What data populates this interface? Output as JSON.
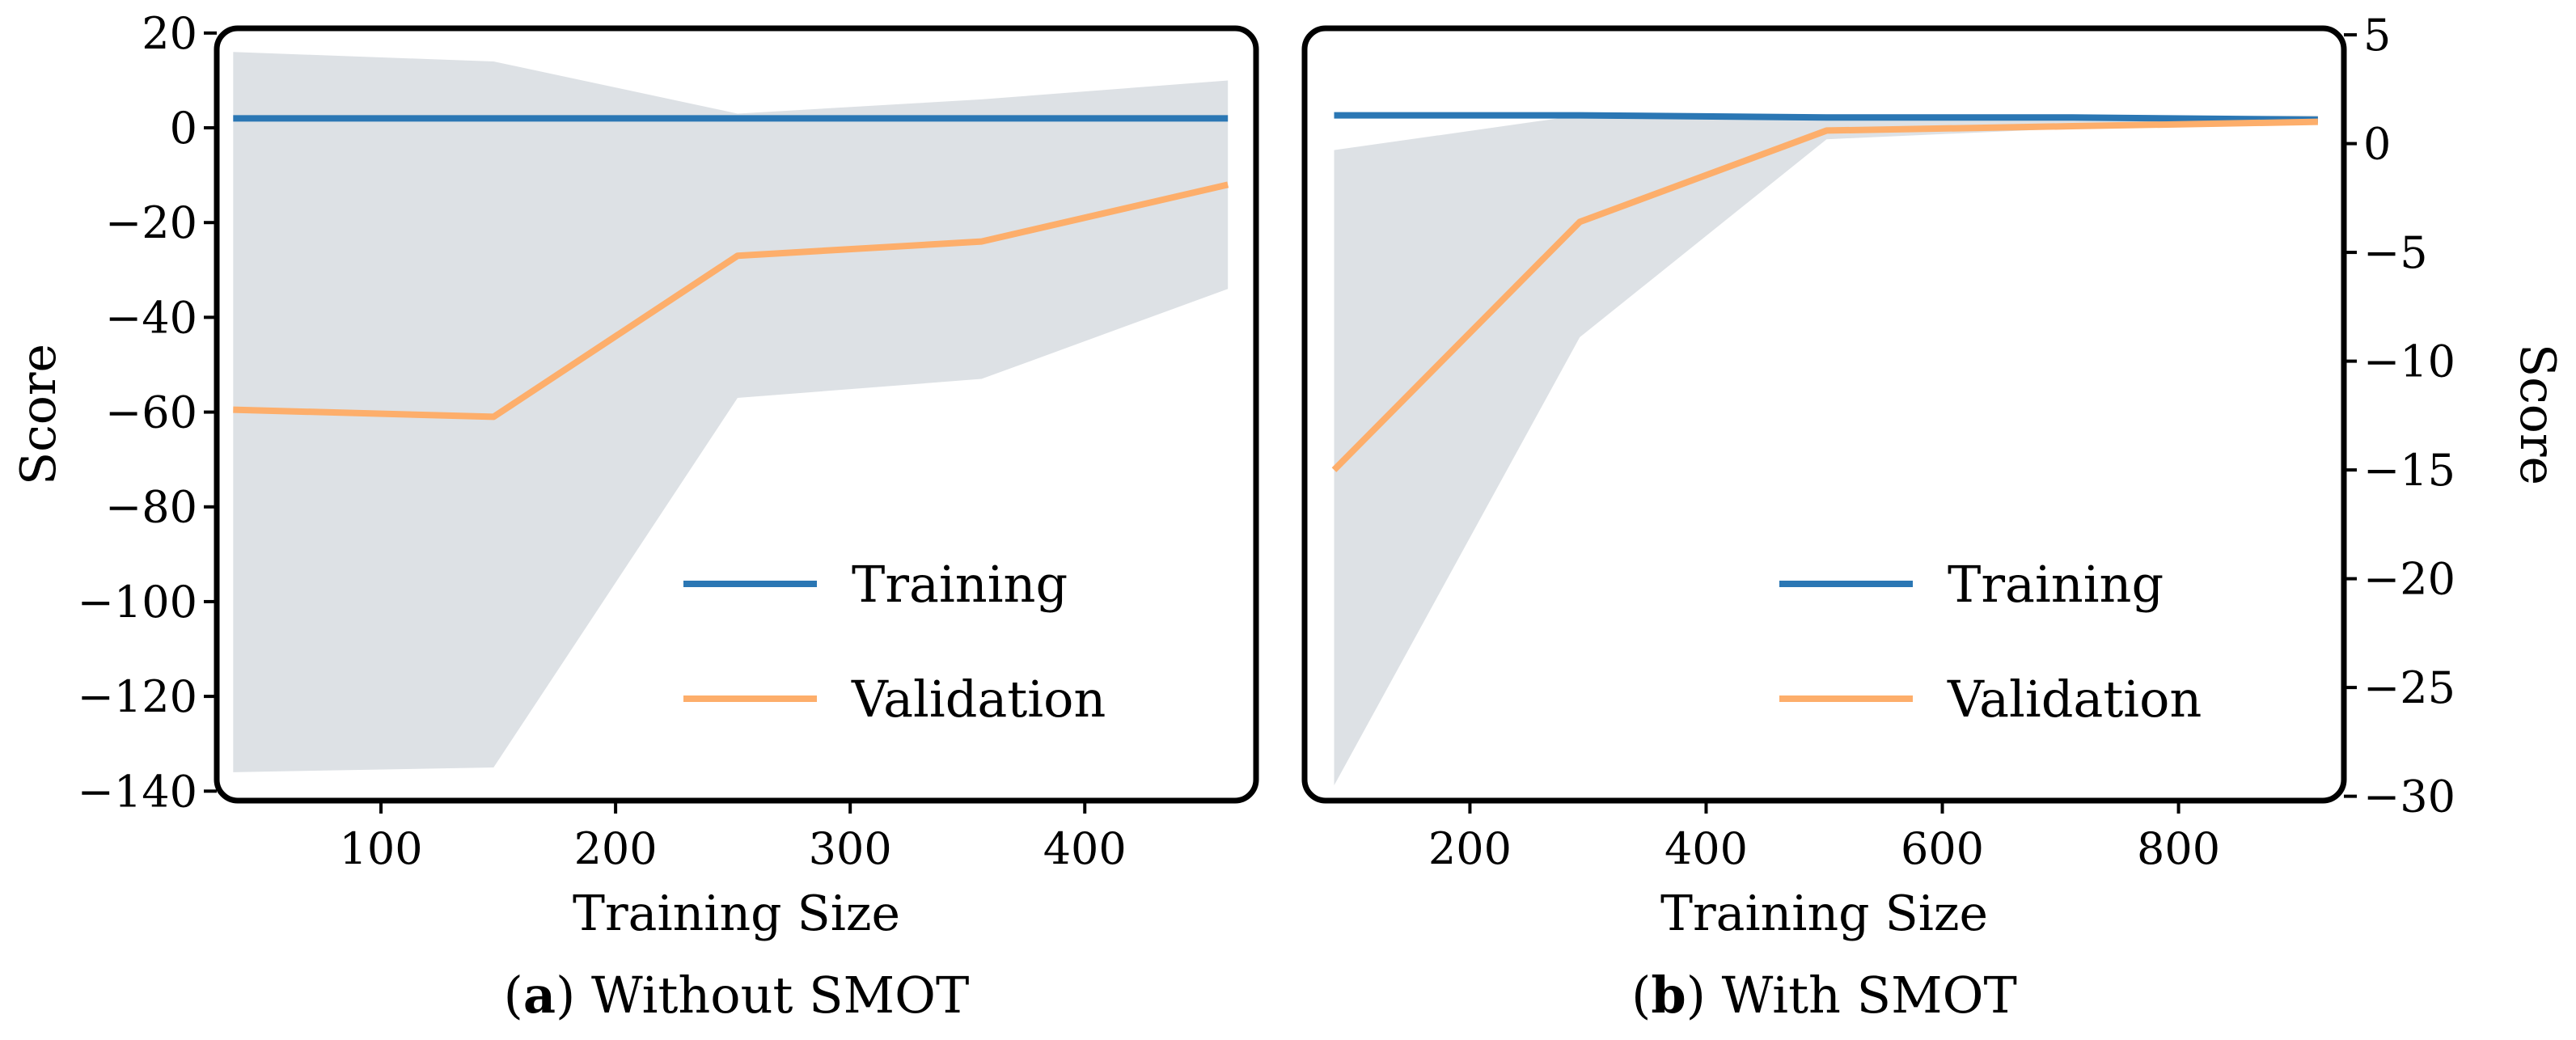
{
  "chart_data": [
    {
      "type": "line",
      "panel": "a",
      "caption": {
        "letter": "a",
        "text": " Without SMOT"
      },
      "xlabel": "Training Size",
      "ylabel": "Score",
      "xlim": [
        30,
        473
      ],
      "ylim": [
        -142,
        21
      ],
      "xticks": [
        100,
        200,
        300,
        400
      ],
      "yticks": [
        20,
        0,
        -20,
        -40,
        -60,
        -80,
        -100,
        -120,
        -140
      ],
      "ytick_labels": [
        "20",
        "0",
        "−20",
        "−40",
        "−60",
        "−80",
        "−100",
        "−120",
        "−140"
      ],
      "ytick_side": "left",
      "band": {
        "x": [
          37,
          148,
          252,
          356,
          461
        ],
        "upper": [
          16,
          14,
          3,
          6,
          10
        ],
        "lower": [
          -136,
          -135,
          -57,
          -53,
          -34
        ],
        "color": "#dde1e5"
      },
      "series": [
        {
          "name": "Training",
          "color": "#2b77b4",
          "x": [
            37,
            148,
            252,
            356,
            461
          ],
          "values": [
            2,
            2,
            2,
            2,
            2
          ]
        },
        {
          "name": "Validation",
          "color": "#fdae6b",
          "x": [
            37,
            148,
            252,
            356,
            461
          ],
          "values": [
            -59.5,
            -61,
            -27,
            -24,
            -12
          ]
        }
      ],
      "legend": [
        {
          "label": "Training",
          "color": "#2b77b4"
        },
        {
          "label": "Validation",
          "color": "#fdae6b"
        }
      ],
      "legend_position": "lower-right"
    },
    {
      "type": "line",
      "panel": "b",
      "caption": {
        "letter": "b",
        "text": " With SMOT"
      },
      "xlabel": "Training Size",
      "ylabel": "Score",
      "xlim": [
        60,
        940
      ],
      "ylim": [
        -30.2,
        5.3
      ],
      "xticks": [
        200,
        400,
        600,
        800
      ],
      "yticks": [
        5,
        0,
        -5,
        -10,
        -15,
        -20,
        -25,
        -30
      ],
      "ytick_labels": [
        "5",
        "0",
        "−5",
        "−10",
        "−15",
        "−20",
        "−25",
        "−30"
      ],
      "ytick_side": "right",
      "band": {
        "x": [
          85,
          293,
          502,
          710,
          918
        ],
        "upper": [
          -0.3,
          1.3,
          1.1,
          1.2,
          1.3
        ],
        "lower": [
          -29.5,
          -8.9,
          0.2,
          0.7,
          0.9
        ],
        "color": "#dde1e5"
      },
      "series": [
        {
          "name": "Training",
          "color": "#2b77b4",
          "x": [
            85,
            293,
            502,
            710,
            918
          ],
          "values": [
            1.3,
            1.3,
            1.2,
            1.2,
            1.1
          ]
        },
        {
          "name": "Validation",
          "color": "#fdae6b",
          "x": [
            85,
            293,
            502,
            710,
            918
          ],
          "values": [
            -15,
            -3.6,
            0.6,
            0.8,
            1.0
          ]
        }
      ],
      "legend": [
        {
          "label": "Training",
          "color": "#2b77b4"
        },
        {
          "label": "Validation",
          "color": "#fdae6b"
        }
      ],
      "legend_position": "lower-right"
    }
  ]
}
